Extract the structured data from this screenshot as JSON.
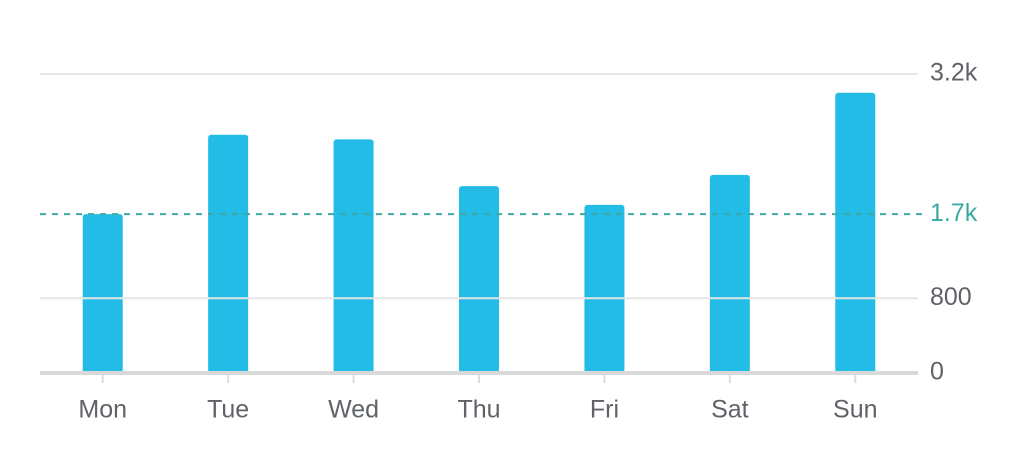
{
  "chart_data": {
    "type": "bar",
    "categories": [
      "Mon",
      "Tue",
      "Wed",
      "Thu",
      "Fri",
      "Sat",
      "Sun"
    ],
    "values": [
      1700,
      2550,
      2500,
      2000,
      1800,
      2120,
      3000
    ],
    "color": "#22bce6",
    "ylim": [
      0,
      3200
    ],
    "yticks": [
      0,
      800,
      {
        "value": 3200,
        "label": "3.2k"
      }
    ],
    "grid": true,
    "reference_line": {
      "value": 1700,
      "label": "1.7k",
      "color": "#3fa9a1"
    }
  }
}
